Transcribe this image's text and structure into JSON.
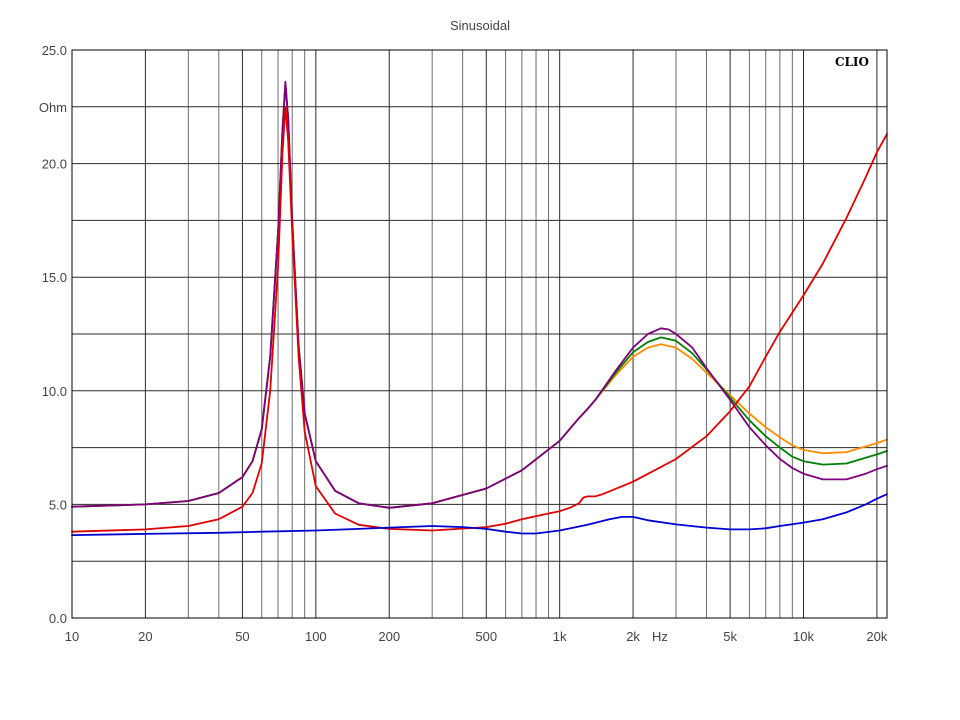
{
  "chart_data": {
    "type": "line",
    "title": "Sinusoidal",
    "xlabel": "Hz",
    "ylabel": "Ohm",
    "x_scale": "log",
    "xlim": [
      10,
      22000
    ],
    "ylim": [
      0,
      25
    ],
    "grid": true,
    "brand": "CLIO",
    "x_ticks": [
      {
        "value": 10,
        "label": "10"
      },
      {
        "value": 20,
        "label": "20"
      },
      {
        "value": 50,
        "label": "50"
      },
      {
        "value": 100,
        "label": "100"
      },
      {
        "value": 200,
        "label": "200"
      },
      {
        "value": 500,
        "label": "500"
      },
      {
        "value": 1000,
        "label": "1k"
      },
      {
        "value": 2000,
        "label": "2k"
      },
      {
        "value": 5000,
        "label": "5k"
      },
      {
        "value": 10000,
        "label": "10k"
      },
      {
        "value": 20000,
        "label": "20k"
      }
    ],
    "y_ticks": [
      {
        "value": 0,
        "label": "0.0"
      },
      {
        "value": 5,
        "label": "5.0"
      },
      {
        "value": 10,
        "label": "10.0"
      },
      {
        "value": 15,
        "label": "15.0"
      },
      {
        "value": 20,
        "label": "20.0"
      },
      {
        "value": 25,
        "label": "25.0"
      }
    ],
    "series": [
      {
        "color": "#ff8c00",
        "points": [
          [
            10,
            4.9
          ],
          [
            20,
            5.0
          ],
          [
            30,
            5.15
          ],
          [
            40,
            5.5
          ],
          [
            50,
            6.2
          ],
          [
            55,
            6.9
          ],
          [
            60,
            8.3
          ],
          [
            65,
            11.5
          ],
          [
            70,
            17.0
          ],
          [
            73,
            21.5
          ],
          [
            75,
            23.5
          ],
          [
            77,
            22.0
          ],
          [
            80,
            17.5
          ],
          [
            85,
            12.0
          ],
          [
            90,
            9.0
          ],
          [
            100,
            6.9
          ],
          [
            120,
            5.6
          ],
          [
            150,
            5.05
          ],
          [
            200,
            4.85
          ],
          [
            300,
            5.05
          ],
          [
            500,
            5.7
          ],
          [
            700,
            6.5
          ],
          [
            1000,
            7.8
          ],
          [
            1200,
            8.8
          ],
          [
            1300,
            9.2
          ],
          [
            1400,
            9.6
          ],
          [
            1700,
            10.7
          ],
          [
            2000,
            11.5
          ],
          [
            2300,
            11.9
          ],
          [
            2600,
            12.05
          ],
          [
            3000,
            11.9
          ],
          [
            3500,
            11.4
          ],
          [
            4000,
            10.8
          ],
          [
            5000,
            9.8
          ],
          [
            6000,
            9.0
          ],
          [
            7000,
            8.4
          ],
          [
            8000,
            7.95
          ],
          [
            9000,
            7.6
          ],
          [
            10000,
            7.4
          ],
          [
            12000,
            7.25
          ],
          [
            15000,
            7.3
          ],
          [
            18000,
            7.55
          ],
          [
            20000,
            7.7
          ],
          [
            22000,
            7.85
          ]
        ]
      },
      {
        "color": "#008000",
        "points": [
          [
            10,
            4.9
          ],
          [
            20,
            5.0
          ],
          [
            30,
            5.15
          ],
          [
            40,
            5.5
          ],
          [
            50,
            6.2
          ],
          [
            55,
            6.9
          ],
          [
            60,
            8.3
          ],
          [
            65,
            11.5
          ],
          [
            70,
            17.0
          ],
          [
            73,
            21.5
          ],
          [
            75,
            23.5
          ],
          [
            77,
            22.0
          ],
          [
            80,
            17.5
          ],
          [
            85,
            12.0
          ],
          [
            90,
            9.0
          ],
          [
            100,
            6.9
          ],
          [
            120,
            5.6
          ],
          [
            150,
            5.05
          ],
          [
            200,
            4.85
          ],
          [
            300,
            5.05
          ],
          [
            500,
            5.7
          ],
          [
            700,
            6.5
          ],
          [
            1000,
            7.8
          ],
          [
            1200,
            8.8
          ],
          [
            1300,
            9.2
          ],
          [
            1400,
            9.6
          ],
          [
            1700,
            10.8
          ],
          [
            2000,
            11.7
          ],
          [
            2300,
            12.15
          ],
          [
            2600,
            12.35
          ],
          [
            3000,
            12.2
          ],
          [
            3500,
            11.65
          ],
          [
            4000,
            10.95
          ],
          [
            5000,
            9.7
          ],
          [
            6000,
            8.7
          ],
          [
            7000,
            8.0
          ],
          [
            8000,
            7.5
          ],
          [
            9000,
            7.1
          ],
          [
            10000,
            6.9
          ],
          [
            12000,
            6.75
          ],
          [
            15000,
            6.8
          ],
          [
            18000,
            7.05
          ],
          [
            20000,
            7.2
          ],
          [
            22000,
            7.35
          ]
        ]
      },
      {
        "color": "#800080",
        "points": [
          [
            10,
            4.9
          ],
          [
            20,
            5.0
          ],
          [
            30,
            5.15
          ],
          [
            40,
            5.5
          ],
          [
            50,
            6.2
          ],
          [
            55,
            6.9
          ],
          [
            60,
            8.3
          ],
          [
            65,
            11.5
          ],
          [
            70,
            17.0
          ],
          [
            73,
            21.5
          ],
          [
            75,
            23.6
          ],
          [
            77,
            22.0
          ],
          [
            80,
            17.5
          ],
          [
            85,
            12.0
          ],
          [
            90,
            9.0
          ],
          [
            100,
            6.9
          ],
          [
            120,
            5.6
          ],
          [
            150,
            5.05
          ],
          [
            200,
            4.85
          ],
          [
            300,
            5.05
          ],
          [
            500,
            5.7
          ],
          [
            700,
            6.5
          ],
          [
            1000,
            7.8
          ],
          [
            1200,
            8.8
          ],
          [
            1300,
            9.2
          ],
          [
            1400,
            9.6
          ],
          [
            1700,
            10.9
          ],
          [
            2000,
            11.9
          ],
          [
            2300,
            12.5
          ],
          [
            2600,
            12.75
          ],
          [
            2800,
            12.7
          ],
          [
            3000,
            12.5
          ],
          [
            3500,
            11.9
          ],
          [
            4000,
            11.0
          ],
          [
            5000,
            9.6
          ],
          [
            6000,
            8.4
          ],
          [
            7000,
            7.6
          ],
          [
            8000,
            7.0
          ],
          [
            9000,
            6.6
          ],
          [
            10000,
            6.35
          ],
          [
            12000,
            6.1
          ],
          [
            15000,
            6.1
          ],
          [
            18000,
            6.35
          ],
          [
            20000,
            6.55
          ],
          [
            22000,
            6.7
          ]
        ]
      },
      {
        "color": "#e00000",
        "points": [
          [
            10,
            3.8
          ],
          [
            20,
            3.9
          ],
          [
            30,
            4.05
          ],
          [
            40,
            4.35
          ],
          [
            50,
            4.9
          ],
          [
            55,
            5.5
          ],
          [
            60,
            6.8
          ],
          [
            65,
            10.0
          ],
          [
            70,
            15.5
          ],
          [
            73,
            20.5
          ],
          [
            75,
            22.5
          ],
          [
            77,
            21.0
          ],
          [
            80,
            17.0
          ],
          [
            85,
            11.5
          ],
          [
            90,
            8.2
          ],
          [
            100,
            5.8
          ],
          [
            120,
            4.6
          ],
          [
            150,
            4.1
          ],
          [
            200,
            3.92
          ],
          [
            300,
            3.85
          ],
          [
            500,
            4.0
          ],
          [
            600,
            4.15
          ],
          [
            700,
            4.35
          ],
          [
            900,
            4.6
          ],
          [
            1000,
            4.7
          ],
          [
            1100,
            4.85
          ],
          [
            1200,
            5.05
          ],
          [
            1250,
            5.3
          ],
          [
            1300,
            5.35
          ],
          [
            1400,
            5.35
          ],
          [
            1500,
            5.45
          ],
          [
            2000,
            6.0
          ],
          [
            3000,
            7.0
          ],
          [
            4000,
            8.0
          ],
          [
            5000,
            9.1
          ],
          [
            6000,
            10.2
          ],
          [
            7000,
            11.5
          ],
          [
            8000,
            12.6
          ],
          [
            10000,
            14.2
          ],
          [
            12000,
            15.6
          ],
          [
            15000,
            17.6
          ],
          [
            18000,
            19.4
          ],
          [
            20000,
            20.5
          ],
          [
            22000,
            21.3
          ]
        ]
      },
      {
        "color": "#0000d0",
        "points": [
          [
            10,
            3.65
          ],
          [
            20,
            3.7
          ],
          [
            40,
            3.75
          ],
          [
            60,
            3.8
          ],
          [
            100,
            3.85
          ],
          [
            150,
            3.92
          ],
          [
            200,
            3.98
          ],
          [
            300,
            4.05
          ],
          [
            400,
            4.0
          ],
          [
            500,
            3.92
          ],
          [
            600,
            3.8
          ],
          [
            700,
            3.72
          ],
          [
            800,
            3.72
          ],
          [
            1000,
            3.85
          ],
          [
            1300,
            4.1
          ],
          [
            1600,
            4.35
          ],
          [
            1800,
            4.45
          ],
          [
            2000,
            4.45
          ],
          [
            2300,
            4.3
          ],
          [
            3000,
            4.12
          ],
          [
            4000,
            3.98
          ],
          [
            5000,
            3.9
          ],
          [
            6000,
            3.9
          ],
          [
            7000,
            3.95
          ],
          [
            8000,
            4.05
          ],
          [
            10000,
            4.2
          ],
          [
            12000,
            4.35
          ],
          [
            15000,
            4.65
          ],
          [
            18000,
            5.0
          ],
          [
            20000,
            5.25
          ],
          [
            22000,
            5.45
          ]
        ]
      }
    ]
  }
}
